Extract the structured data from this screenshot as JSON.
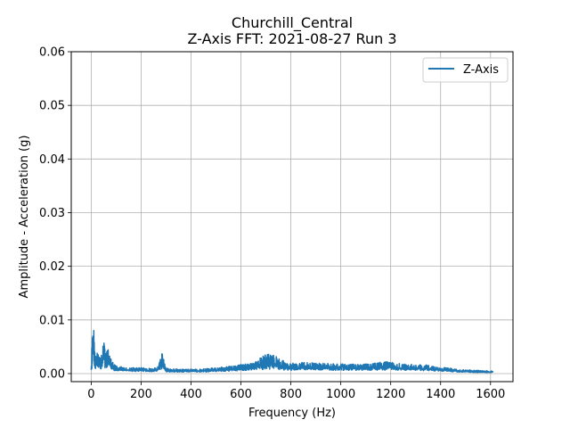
{
  "chart_data": {
    "type": "line",
    "title": "Churchill_Central",
    "subtitle": "Z-Axis FFT: 2021-08-27 Run 3",
    "xlabel": "Frequency (Hz)",
    "ylabel": "Amplitude - Acceleration (g)",
    "xlim": [
      -80,
      1690
    ],
    "ylim": [
      -0.0015,
      0.06
    ],
    "xticks": [
      0,
      200,
      400,
      600,
      800,
      1000,
      1200,
      1400,
      1600
    ],
    "xtick_labels": [
      "0",
      "200",
      "400",
      "600",
      "800",
      "1000",
      "1200",
      "1400",
      "1600"
    ],
    "yticks": [
      0.0,
      0.01,
      0.02,
      0.03,
      0.04,
      0.05,
      0.06
    ],
    "ytick_labels": [
      "0.00",
      "0.01",
      "0.02",
      "0.03",
      "0.04",
      "0.05",
      "0.06"
    ],
    "grid": true,
    "legend_position": "top-right",
    "series": [
      {
        "name": "Z-Axis",
        "color": "#1f77b4",
        "envelope": {
          "x": [
            0,
            5,
            10,
            15,
            20,
            30,
            40,
            50,
            60,
            70,
            80,
            90,
            100,
            150,
            200,
            250,
            270,
            285,
            300,
            350,
            400,
            450,
            500,
            550,
            600,
            650,
            670,
            700,
            730,
            750,
            800,
            850,
            900,
            1000,
            1100,
            1150,
            1180,
            1200,
            1250,
            1300,
            1350,
            1400,
            1420,
            1450,
            1500,
            1550,
            1600,
            1610
          ],
          "max": [
            0.0021,
            0.0082,
            0.0085,
            0.0045,
            0.0038,
            0.004,
            0.0033,
            0.0063,
            0.006,
            0.0043,
            0.003,
            0.0018,
            0.0015,
            0.0011,
            0.0011,
            0.0009,
            0.0016,
            0.004,
            0.001,
            0.0008,
            0.0008,
            0.0009,
            0.0011,
            0.0013,
            0.0017,
            0.002,
            0.003,
            0.0035,
            0.0038,
            0.0028,
            0.0019,
            0.0021,
            0.002,
            0.0018,
            0.0018,
            0.002,
            0.0024,
            0.0021,
            0.0018,
            0.0017,
            0.0016,
            0.001,
            0.0012,
            0.0009,
            0.0007,
            0.0006,
            0.0005,
            0.0004
          ],
          "min": [
            0.0,
            0.0,
            0.0,
            0.0002,
            0.0002,
            0.0002,
            0.0003,
            0.0003,
            0.0003,
            0.0003,
            0.0003,
            0.0003,
            0.0003,
            0.0003,
            0.0003,
            0.0002,
            0.0003,
            0.0004,
            0.0002,
            0.0002,
            0.0002,
            0.0002,
            0.0002,
            0.0003,
            0.0003,
            0.0003,
            0.0004,
            0.0004,
            0.0004,
            0.0004,
            0.0004,
            0.0004,
            0.0004,
            0.0004,
            0.0004,
            0.0004,
            0.0004,
            0.0004,
            0.0004,
            0.0004,
            0.0003,
            0.0003,
            0.0003,
            0.0002,
            0.0002,
            0.0001,
            0.0001,
            0.0001
          ]
        }
      }
    ]
  }
}
